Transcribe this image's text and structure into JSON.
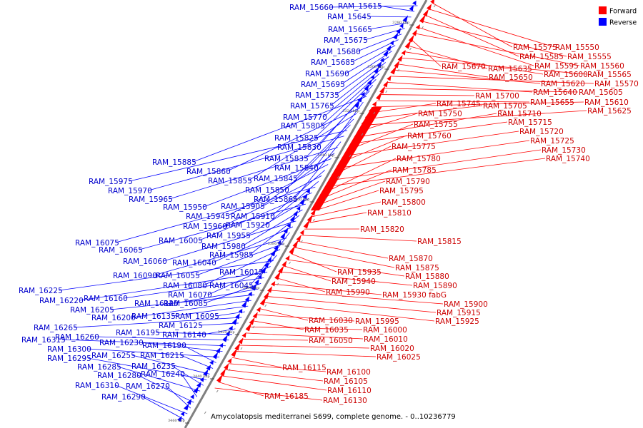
{
  "caption": "Amycolatopsis mediterranei S699, complete genome. - 0..10236779",
  "legend": [
    {
      "label": "Forward",
      "color": "#ff0000"
    },
    {
      "label": "Reverse",
      "color": "#0000ff"
    }
  ],
  "colors": {
    "forward": "#ff0000",
    "reverse": "#0000ff",
    "backbone": "#808080",
    "forward_label": "#cc0000",
    "reverse_label": "#0000cc"
  },
  "ticks": [
    "3280 kbp",
    "3300 kbp",
    "3320 kbp",
    "3340 kbp",
    "3360 kbp",
    "3380 kbp",
    "3400 kbp",
    "3420 kbp",
    "3440 kbp",
    "3460 kbp"
  ],
  "reverse_genes": [
    "RAM_15660",
    "RAM_15615",
    "RAM_15645",
    "RAM_15665",
    "RAM_15675",
    "RAM_15680",
    "RAM_15685",
    "RAM_15690",
    "RAM_15695",
    "RAM_15735",
    "RAM_15765",
    "RAM_15770",
    "RAM_15805",
    "RAM_15825",
    "RAM_15830",
    "RAM_15835",
    "RAM_15885",
    "RAM_15840",
    "RAM_15860",
    "RAM_15855",
    "RAM_15845",
    "RAM_15850",
    "RAM_15975",
    "RAM_15970",
    "RAM_15865",
    "RAM_15965",
    "RAM_15905",
    "RAM_15950",
    "RAM_15945",
    "RAM_15910",
    "RAM_15960",
    "RAM_15920",
    "RAM_16075",
    "RAM_16005",
    "RAM_15955",
    "RAM_16065",
    "RAM_15980",
    "RAM_15985",
    "RAM_16060",
    "RAM_16040",
    "RAM_16015",
    "RAM_16090",
    "RAM_16055",
    "RAM_16080",
    "RAM_16045",
    "RAM_16225",
    "RAM_16070",
    "RAM_16220",
    "RAM_16160",
    "RAM_16085",
    "RAM_16120",
    "RAM_16205",
    "RAM_16200",
    "RAM_16135",
    "RAM_16095",
    "RAM_16265",
    "RAM_16125",
    "RAM_16140",
    "RAM_16195",
    "RAM_16260",
    "RAM_16315",
    "RAM_16230",
    "RAM_16300",
    "RAM_16190",
    "RAM_16215",
    "RAM_16255",
    "RAM_16295",
    "RAM_16235",
    "RAM_16285",
    "RAM_16240",
    "RAM_16280",
    "RAM_16270",
    "RAM_16310",
    "RAM_16290"
  ],
  "forward_genes": [
    "RAM_15575",
    "RAM_15550",
    "RAM_15585",
    "RAM_15555",
    "RAM_15595",
    "RAM_15560",
    "RAM_15670",
    "RAM_15635",
    "RAM_15600",
    "RAM_15565",
    "RAM_15650",
    "RAM_15620",
    "RAM_15570",
    "RAM_15640",
    "RAM_15605",
    "RAM_15700",
    "RAM_15655",
    "RAM_15610",
    "RAM_15745",
    "RAM_15705",
    "RAM_15625",
    "RAM_15750",
    "RAM_15710",
    "RAM_15715",
    "RAM_15755",
    "RAM_15720",
    "RAM_15760",
    "RAM_15725",
    "RAM_15775",
    "RAM_15730",
    "RAM_15740",
    "RAM_15780",
    "RAM_15785",
    "RAM_15790",
    "RAM_15795",
    "RAM_15800",
    "RAM_15810",
    "RAM_15820",
    "RAM_15815",
    "RAM_15870",
    "RAM_15875",
    "RAM_15935",
    "RAM_15880",
    "RAM_15940",
    "RAM_15890",
    "RAM_15990",
    "RAM_15930 fabG",
    "RAM_15900",
    "RAM_15915",
    "RAM_15925",
    "RAM_16030",
    "RAM_15995",
    "RAM_16035",
    "RAM_16000",
    "RAM_16010",
    "RAM_16050",
    "RAM_16020",
    "RAM_16025",
    "RAM_16115",
    "RAM_16100",
    "RAM_16105",
    "RAM_16110",
    "RAM_16185",
    "RAM_16130"
  ]
}
